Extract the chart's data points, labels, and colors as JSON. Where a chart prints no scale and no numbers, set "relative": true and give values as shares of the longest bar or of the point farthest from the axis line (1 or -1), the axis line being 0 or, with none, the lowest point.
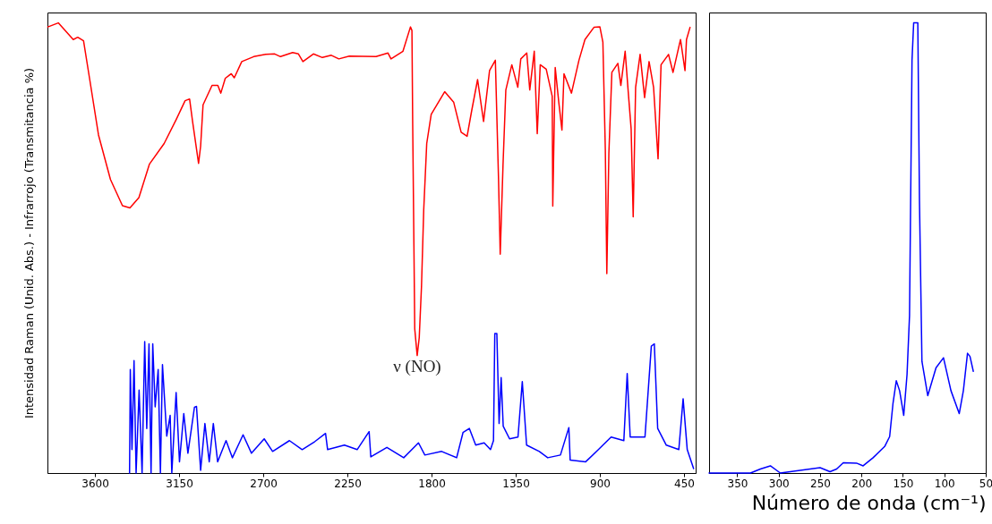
{
  "chart_data": [
    {
      "type": "line",
      "ylabel": "Intensidad Raman (Unid. Abs.) - Infrarrojo (Transmitancia %)",
      "relative": true,
      "xlim": [
        3854,
        388
      ],
      "xticks": [
        3600,
        3150,
        2700,
        2250,
        1800,
        1350,
        900,
        450
      ],
      "annotations": [
        {
          "text": "ν (NO)",
          "x": 1877,
          "y": 0.261
        }
      ],
      "series": [
        {
          "color": "#ff0000",
          "x": [
            3852,
            3796,
            3716,
            3692,
            3661,
            3629,
            3581,
            3517,
            3453,
            3413,
            3365,
            3309,
            3230,
            3166,
            3118,
            3094,
            3078,
            3046,
            3035,
            3022,
            2974,
            2943,
            2927,
            2903,
            2871,
            2855,
            2815,
            2751,
            2687,
            2639,
            2608,
            2543,
            2512,
            2488,
            2432,
            2384,
            2336,
            2296,
            2240,
            2097,
            2033,
            2017,
            1953,
            1913,
            1905,
            1901,
            1890,
            1877,
            1866,
            1854,
            1842,
            1826,
            1802,
            1730,
            1682,
            1642,
            1610,
            1586,
            1554,
            1522,
            1490,
            1459,
            1442,
            1433,
            1418,
            1403,
            1371,
            1339,
            1323,
            1291,
            1275,
            1251,
            1235,
            1219,
            1187,
            1155,
            1152,
            1139,
            1120,
            1103,
            1092,
            1052,
            1012,
            980,
            932,
            900,
            884,
            871,
            863,
            852,
            836,
            804,
            788,
            765,
            748,
            733,
            722,
            709,
            685,
            661,
            637,
            613,
            589,
            573,
            533,
            509,
            469,
            445,
            437,
            418
          ],
          "values": [
            0.991,
            1,
            0.963,
            0.968,
            0.96,
            0.877,
            0.751,
            0.652,
            0.594,
            0.589,
            0.612,
            0.686,
            0.732,
            0.785,
            0.827,
            0.831,
            0.781,
            0.688,
            0.726,
            0.818,
            0.861,
            0.861,
            0.844,
            0.877,
            0.887,
            0.878,
            0.914,
            0.925,
            0.93,
            0.931,
            0.925,
            0.934,
            0.931,
            0.914,
            0.931,
            0.923,
            0.928,
            0.92,
            0.926,
            0.925,
            0.933,
            0.92,
            0.937,
            0.991,
            0.983,
            0.775,
            0.32,
            0.261,
            0.301,
            0.414,
            0.585,
            0.732,
            0.797,
            0.847,
            0.824,
            0.757,
            0.748,
            0.804,
            0.874,
            0.781,
            0.894,
            0.917,
            0.652,
            0.486,
            0.685,
            0.851,
            0.907,
            0.857,
            0.92,
            0.933,
            0.851,
            0.937,
            0.754,
            0.907,
            0.897,
            0.837,
            0.593,
            0.901,
            0.824,
            0.762,
            0.887,
            0.844,
            0.917,
            0.963,
            0.99,
            0.991,
            0.957,
            0.719,
            0.443,
            0.711,
            0.89,
            0.91,
            0.861,
            0.937,
            0.844,
            0.765,
            0.569,
            0.857,
            0.93,
            0.834,
            0.914,
            0.857,
            0.698,
            0.907,
            0.93,
            0.89,
            0.963,
            0.894,
            0.963,
            0.99
          ]
        },
        {
          "color": "#0000ff",
          "x": [
            3415,
            3411,
            3402,
            3391,
            3380,
            3364,
            3348,
            3334,
            3323,
            3311,
            3300,
            3291,
            3278,
            3262,
            3250,
            3239,
            3216,
            3198,
            3189,
            3166,
            3148,
            3125,
            3103,
            3068,
            3057,
            3035,
            3012,
            2989,
            2967,
            2944,
            2899,
            2865,
            2808,
            2763,
            2695,
            2650,
            2560,
            2492,
            2424,
            2367,
            2356,
            2266,
            2198,
            2134,
            2125,
            2039,
            1949,
            1870,
            1836,
            1746,
            1666,
            1632,
            1598,
            1564,
            1519,
            1485,
            1469,
            1462,
            1451,
            1439,
            1428,
            1417,
            1383,
            1338,
            1315,
            1292,
            1224,
            1179,
            1111,
            1066,
            1059,
            976,
            908,
            840,
            772,
            754,
            738,
            659,
            625,
            609,
            591,
            545,
            478,
            455,
            433,
            399
          ],
          "values": [
            0,
            0.23,
            0.052,
            0.25,
            0,
            0.184,
            0,
            0.292,
            0.099,
            0.287,
            0,
            0.287,
            0.147,
            0.23,
            0,
            0.241,
            0.082,
            0.128,
            0,
            0.179,
            0.025,
            0.132,
            0.044,
            0.146,
            0.148,
            0.006,
            0.11,
            0.025,
            0.11,
            0.025,
            0.072,
            0.034,
            0.085,
            0.044,
            0.076,
            0.048,
            0.072,
            0.052,
            0.07,
            0.088,
            0.052,
            0.062,
            0.052,
            0.092,
            0.036,
            0.057,
            0.034,
            0.067,
            0.04,
            0.048,
            0.034,
            0.09,
            0.099,
            0.062,
            0.067,
            0.052,
            0.072,
            0.31,
            0.31,
            0.11,
            0.212,
            0.104,
            0.076,
            0.08,
            0.203,
            0.062,
            0.048,
            0.034,
            0.04,
            0.101,
            0.029,
            0.025,
            0.052,
            0.08,
            0.072,
            0.221,
            0.08,
            0.08,
            0.282,
            0.287,
            0.099,
            0.062,
            0.052,
            0.165,
            0.052,
            0.01
          ]
        }
      ]
    },
    {
      "type": "line",
      "xlabel": "Número de onda (cm⁻¹)",
      "relative": true,
      "xlim": [
        384,
        50
      ],
      "xticks": [
        350,
        300,
        250,
        200,
        150,
        100,
        50
      ],
      "series": [
        {
          "color": "#0000ff",
          "x": [
            384,
            334,
            322,
            310,
            298,
            262,
            250,
            238,
            230,
            222,
            206,
            198,
            186,
            172,
            166,
            162,
            158,
            154,
            149,
            145,
            142,
            139,
            137,
            132,
            130,
            127,
            120,
            110,
            101,
            92,
            82,
            77,
            72,
            69,
            65
          ],
          "values": [
            0,
            0,
            0.009,
            0.016,
            0,
            0.009,
            0.012,
            0.003,
            0.009,
            0.023,
            0.022,
            0.016,
            0.034,
            0.059,
            0.081,
            0.154,
            0.205,
            0.183,
            0.128,
            0.219,
            0.35,
            0.917,
            1,
            1,
            0.604,
            0.248,
            0.172,
            0.234,
            0.256,
            0.183,
            0.132,
            0.183,
            0.266,
            0.259,
            0.226
          ]
        }
      ]
    }
  ]
}
